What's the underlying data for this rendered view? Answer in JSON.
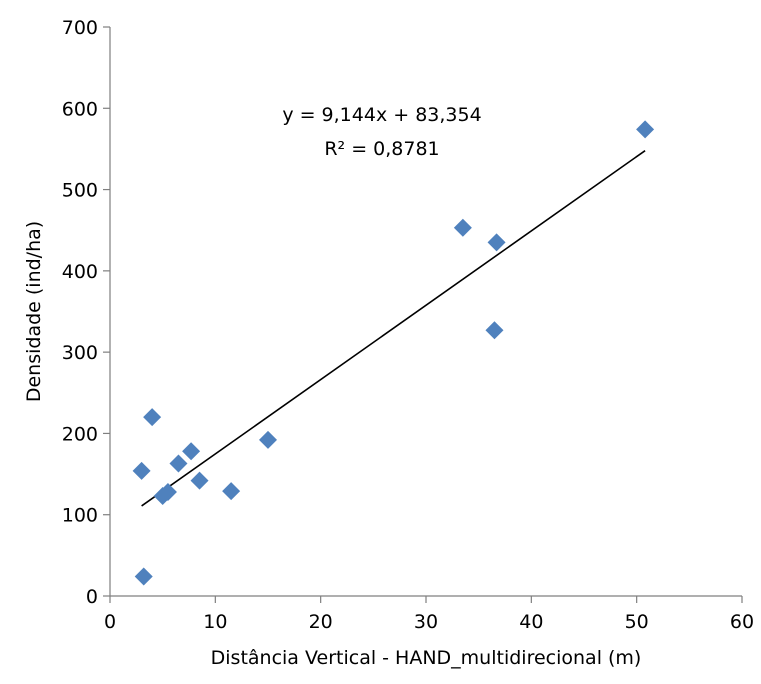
{
  "chart_data": {
    "type": "scatter",
    "title": "",
    "xlabel": "Distância Vertical - HAND_multidirecional (m)",
    "ylabel": "Densidade (ind/ha)",
    "xlim": [
      0,
      60
    ],
    "ylim": [
      0,
      700
    ],
    "xticks": [
      0,
      10,
      20,
      30,
      40,
      50,
      60
    ],
    "yticks": [
      0,
      100,
      200,
      300,
      400,
      500,
      600,
      700
    ],
    "xtick_labels": [
      "0",
      "10",
      "20",
      "30",
      "40",
      "50",
      "60"
    ],
    "ytick_labels": [
      "0",
      "100",
      "200",
      "300",
      "400",
      "500",
      "600",
      "700"
    ],
    "grid": false,
    "legend": "none",
    "series": [
      {
        "marker": "diamond",
        "color": "#4f81bd",
        "x": [
          3.0,
          3.2,
          4.0,
          5.0,
          5.5,
          6.5,
          7.7,
          8.5,
          11.5,
          15.0,
          33.5,
          36.5,
          36.7,
          50.8
        ],
        "y": [
          154,
          24,
          220,
          123,
          128,
          163,
          178,
          142,
          129,
          192,
          453,
          327,
          435,
          574
        ]
      }
    ],
    "trendline": {
      "slope": 9.144,
      "intercept": 83.354,
      "x_range": [
        3.0,
        50.8
      ],
      "color": "#000000"
    },
    "annotations": {
      "equation": "y = 9,144x + 83,354",
      "r_squared": "R² = 0,8781"
    }
  }
}
